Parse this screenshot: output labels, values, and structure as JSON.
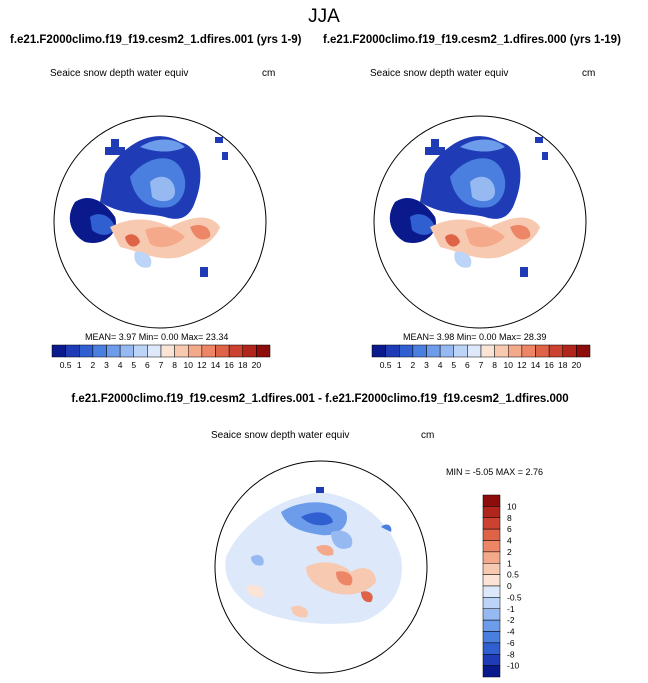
{
  "page_title": "JJA",
  "titles": {
    "left": "f.e21.F2000climo.f19_f19.cesm2_1.dfires.001 (yrs 1-9)",
    "right": "f.e21.F2000climo.f19_f19.cesm2_1.dfires.000 (yrs 1-19)",
    "diff": "f.e21.F2000climo.f19_f19.cesm2_1.dfires.001 - f.e21.F2000climo.f19_f19.cesm2_1.dfires.000"
  },
  "chart_data": [
    {
      "type": "heatmap",
      "projection": "north polar stereographic",
      "variable": "Seaice snow depth water equiv",
      "units": "cm",
      "stats_label": "MEAN=  3.97  Min=  0.00  Max=  23.34",
      "stats": {
        "mean": 3.97,
        "min": 0.0,
        "max": 23.34
      },
      "colorbar": {
        "orientation": "horizontal",
        "levels": [
          "0.5",
          "1",
          "2",
          "3",
          "4",
          "5",
          "6",
          "7",
          "8",
          "10",
          "12",
          "14",
          "16",
          "18",
          "20"
        ],
        "colors": [
          "#0a1a8c",
          "#1f3bb5",
          "#2f5fd0",
          "#4a7fe0",
          "#6d9ceb",
          "#96b9f2",
          "#bcd4f7",
          "#dde9fb",
          "#fbe3d6",
          "#f8c9b1",
          "#f3a98a",
          "#ec8666",
          "#df6346",
          "#cc4130",
          "#b0261d",
          "#8c0d0b"
        ]
      }
    },
    {
      "type": "heatmap",
      "projection": "north polar stereographic",
      "variable": "Seaice snow depth water equiv",
      "units": "cm",
      "stats_label": "MEAN=  3.98  Min=  0.00  Max=  28.39",
      "stats": {
        "mean": 3.98,
        "min": 0.0,
        "max": 28.39
      },
      "colorbar": {
        "orientation": "horizontal",
        "levels": [
          "0.5",
          "1",
          "2",
          "3",
          "4",
          "5",
          "6",
          "7",
          "8",
          "10",
          "12",
          "14",
          "16",
          "18",
          "20"
        ],
        "colors": [
          "#0a1a8c",
          "#1f3bb5",
          "#2f5fd0",
          "#4a7fe0",
          "#6d9ceb",
          "#96b9f2",
          "#bcd4f7",
          "#dde9fb",
          "#fbe3d6",
          "#f8c9b1",
          "#f3a98a",
          "#ec8666",
          "#df6346",
          "#cc4130",
          "#b0261d",
          "#8c0d0b"
        ]
      }
    },
    {
      "type": "heatmap",
      "projection": "north polar stereographic",
      "variable": "Seaice snow depth water equiv",
      "units": "cm",
      "stats_label": "MIN = -5.05 MAX =  2.76",
      "stats": {
        "min": -5.05,
        "max": 2.76
      },
      "colorbar": {
        "orientation": "vertical",
        "levels": [
          "10",
          "8",
          "6",
          "4",
          "2",
          "1",
          "0.5",
          "0",
          "-0.5",
          "-1",
          "-2",
          "-4",
          "-6",
          "-8",
          "-10"
        ],
        "colors": [
          "#8c0d0b",
          "#b0261d",
          "#cc4130",
          "#df6346",
          "#ec8666",
          "#f3a98a",
          "#f8c9b1",
          "#fbe3d6",
          "#dde9fb",
          "#bcd4f7",
          "#96b9f2",
          "#6d9ceb",
          "#4a7fe0",
          "#2f5fd0",
          "#1f3bb5",
          "#0a1a8c"
        ]
      }
    }
  ]
}
